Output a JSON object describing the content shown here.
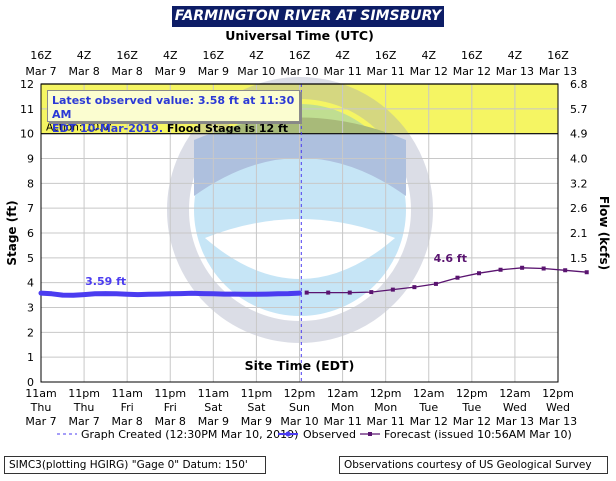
{
  "header": {
    "title": "FARMINGTON RIVER AT SIMSBURY",
    "top_axis_title": "Universal Time (UTC)"
  },
  "info": {
    "line1": "Latest observed value: 3.58 ft at 11:30 AM",
    "line2_a": "EDT 10-Mar-2019.",
    "line2_b": "Flood Stage is 12 ft"
  },
  "legend": {
    "created": "Graph Created (12:30PM Mar 10, 2019)",
    "observed": "Observed",
    "forecast": "Forecast (issued 10:56AM Mar 10)"
  },
  "footer": {
    "left": "SIMC3(plotting HGIRG) \"Gage 0\" Datum: 150'",
    "right": "Observations courtesy of US Geological Survey"
  },
  "colors": {
    "observed": "#4b3cf0",
    "forecast": "#5a1470",
    "flood_band": "#f5f563",
    "title_bg": "#0d1d66"
  },
  "chart_data": {
    "type": "line",
    "title": "FARMINGTON RIVER AT SIMSBURY",
    "xlabel": "Site Time (EDT)",
    "x2label": "Universal Time (UTC)",
    "ylabel": "Stage (ft)",
    "y2label": "Flow (kcfs)",
    "ylim": [
      0,
      12
    ],
    "grid": true,
    "yticks": [
      "0",
      "1",
      "2",
      "3",
      "4",
      "5",
      "6",
      "7",
      "8",
      "9",
      "10",
      "11",
      "12"
    ],
    "y2ticks": [
      "6.8",
      "5.7",
      "4.9",
      "4.0",
      "3.2",
      "2.6",
      "2.1",
      "1.5"
    ],
    "y2tick_stage": [
      12,
      11,
      10,
      9,
      8,
      7,
      6,
      5
    ],
    "x_domain_hours": [
      0,
      144
    ],
    "bottom_ticks": [
      {
        "h": 0,
        "time": "11am",
        "day": "Thu",
        "date": "Mar 7"
      },
      {
        "h": 12,
        "time": "11pm",
        "day": "Thu",
        "date": "Mar 7"
      },
      {
        "h": 24,
        "time": "11am",
        "day": "Fri",
        "date": "Mar 8"
      },
      {
        "h": 36,
        "time": "11pm",
        "day": "Fri",
        "date": "Mar 8"
      },
      {
        "h": 48,
        "time": "11am",
        "day": "Sat",
        "date": "Mar 9"
      },
      {
        "h": 60,
        "time": "11pm",
        "day": "Sat",
        "date": "Mar 9"
      },
      {
        "h": 72,
        "time": "12pm",
        "day": "Sun",
        "date": "Mar 10"
      },
      {
        "h": 84,
        "time": "12am",
        "day": "Mon",
        "date": "Mar 11"
      },
      {
        "h": 96,
        "time": "12pm",
        "day": "Mon",
        "date": "Mar 11"
      },
      {
        "h": 108,
        "time": "12am",
        "day": "Tue",
        "date": "Mar 12"
      },
      {
        "h": 120,
        "time": "12pm",
        "day": "Tue",
        "date": "Mar 12"
      },
      {
        "h": 132,
        "time": "12am",
        "day": "Wed",
        "date": "Mar 13"
      },
      {
        "h": 144,
        "time": "12pm",
        "day": "Wed",
        "date": "Mar 13"
      }
    ],
    "top_ticks": [
      {
        "h": 0,
        "time": "16Z",
        "date": "Mar 7"
      },
      {
        "h": 12,
        "time": "4Z",
        "date": "Mar 8"
      },
      {
        "h": 24,
        "time": "16Z",
        "date": "Mar 8"
      },
      {
        "h": 36,
        "time": "4Z",
        "date": "Mar 9"
      },
      {
        "h": 48,
        "time": "16Z",
        "date": "Mar 9"
      },
      {
        "h": 60,
        "time": "4Z",
        "date": "Mar 10"
      },
      {
        "h": 72,
        "time": "16Z",
        "date": "Mar 10"
      },
      {
        "h": 84,
        "time": "4Z",
        "date": "Mar 11"
      },
      {
        "h": 96,
        "time": "16Z",
        "date": "Mar 11"
      },
      {
        "h": 108,
        "time": "4Z",
        "date": "Mar 12"
      },
      {
        "h": 120,
        "time": "16Z",
        "date": "Mar 12"
      },
      {
        "h": 132,
        "time": "4Z",
        "date": "Mar 13"
      },
      {
        "h": 144,
        "time": "16Z",
        "date": "Mar 13"
      }
    ],
    "flood_stage": 12,
    "action_stage": 10,
    "action_label": "Action: 10.0'",
    "created_h": 72.5,
    "series": [
      {
        "name": "Observed",
        "label": "3.59 ft",
        "label_at": {
          "h": 18,
          "y": 3.59
        },
        "points": [
          [
            0,
            3.58
          ],
          [
            3,
            3.55
          ],
          [
            6,
            3.5
          ],
          [
            9,
            3.49
          ],
          [
            12,
            3.52
          ],
          [
            15,
            3.55
          ],
          [
            18,
            3.56
          ],
          [
            21,
            3.55
          ],
          [
            24,
            3.53
          ],
          [
            27,
            3.52
          ],
          [
            30,
            3.53
          ],
          [
            33,
            3.54
          ],
          [
            36,
            3.55
          ],
          [
            39,
            3.56
          ],
          [
            42,
            3.57
          ],
          [
            45,
            3.56
          ],
          [
            48,
            3.55
          ],
          [
            51,
            3.54
          ],
          [
            54,
            3.54
          ],
          [
            57,
            3.53
          ],
          [
            60,
            3.53
          ],
          [
            63,
            3.54
          ],
          [
            66,
            3.55
          ],
          [
            69,
            3.56
          ],
          [
            72,
            3.58
          ]
        ]
      },
      {
        "name": "Forecast",
        "label": "4.6 ft",
        "label_at": {
          "h": 114,
          "y": 4.6
        },
        "points": [
          [
            74,
            3.6
          ],
          [
            80,
            3.6
          ],
          [
            86,
            3.6
          ],
          [
            92,
            3.62
          ],
          [
            98,
            3.72
          ],
          [
            104,
            3.82
          ],
          [
            110,
            3.95
          ],
          [
            116,
            4.2
          ],
          [
            122,
            4.38
          ],
          [
            128,
            4.52
          ],
          [
            134,
            4.6
          ],
          [
            140,
            4.57
          ],
          [
            146,
            4.5
          ],
          [
            152,
            4.42
          ]
        ]
      }
    ]
  }
}
